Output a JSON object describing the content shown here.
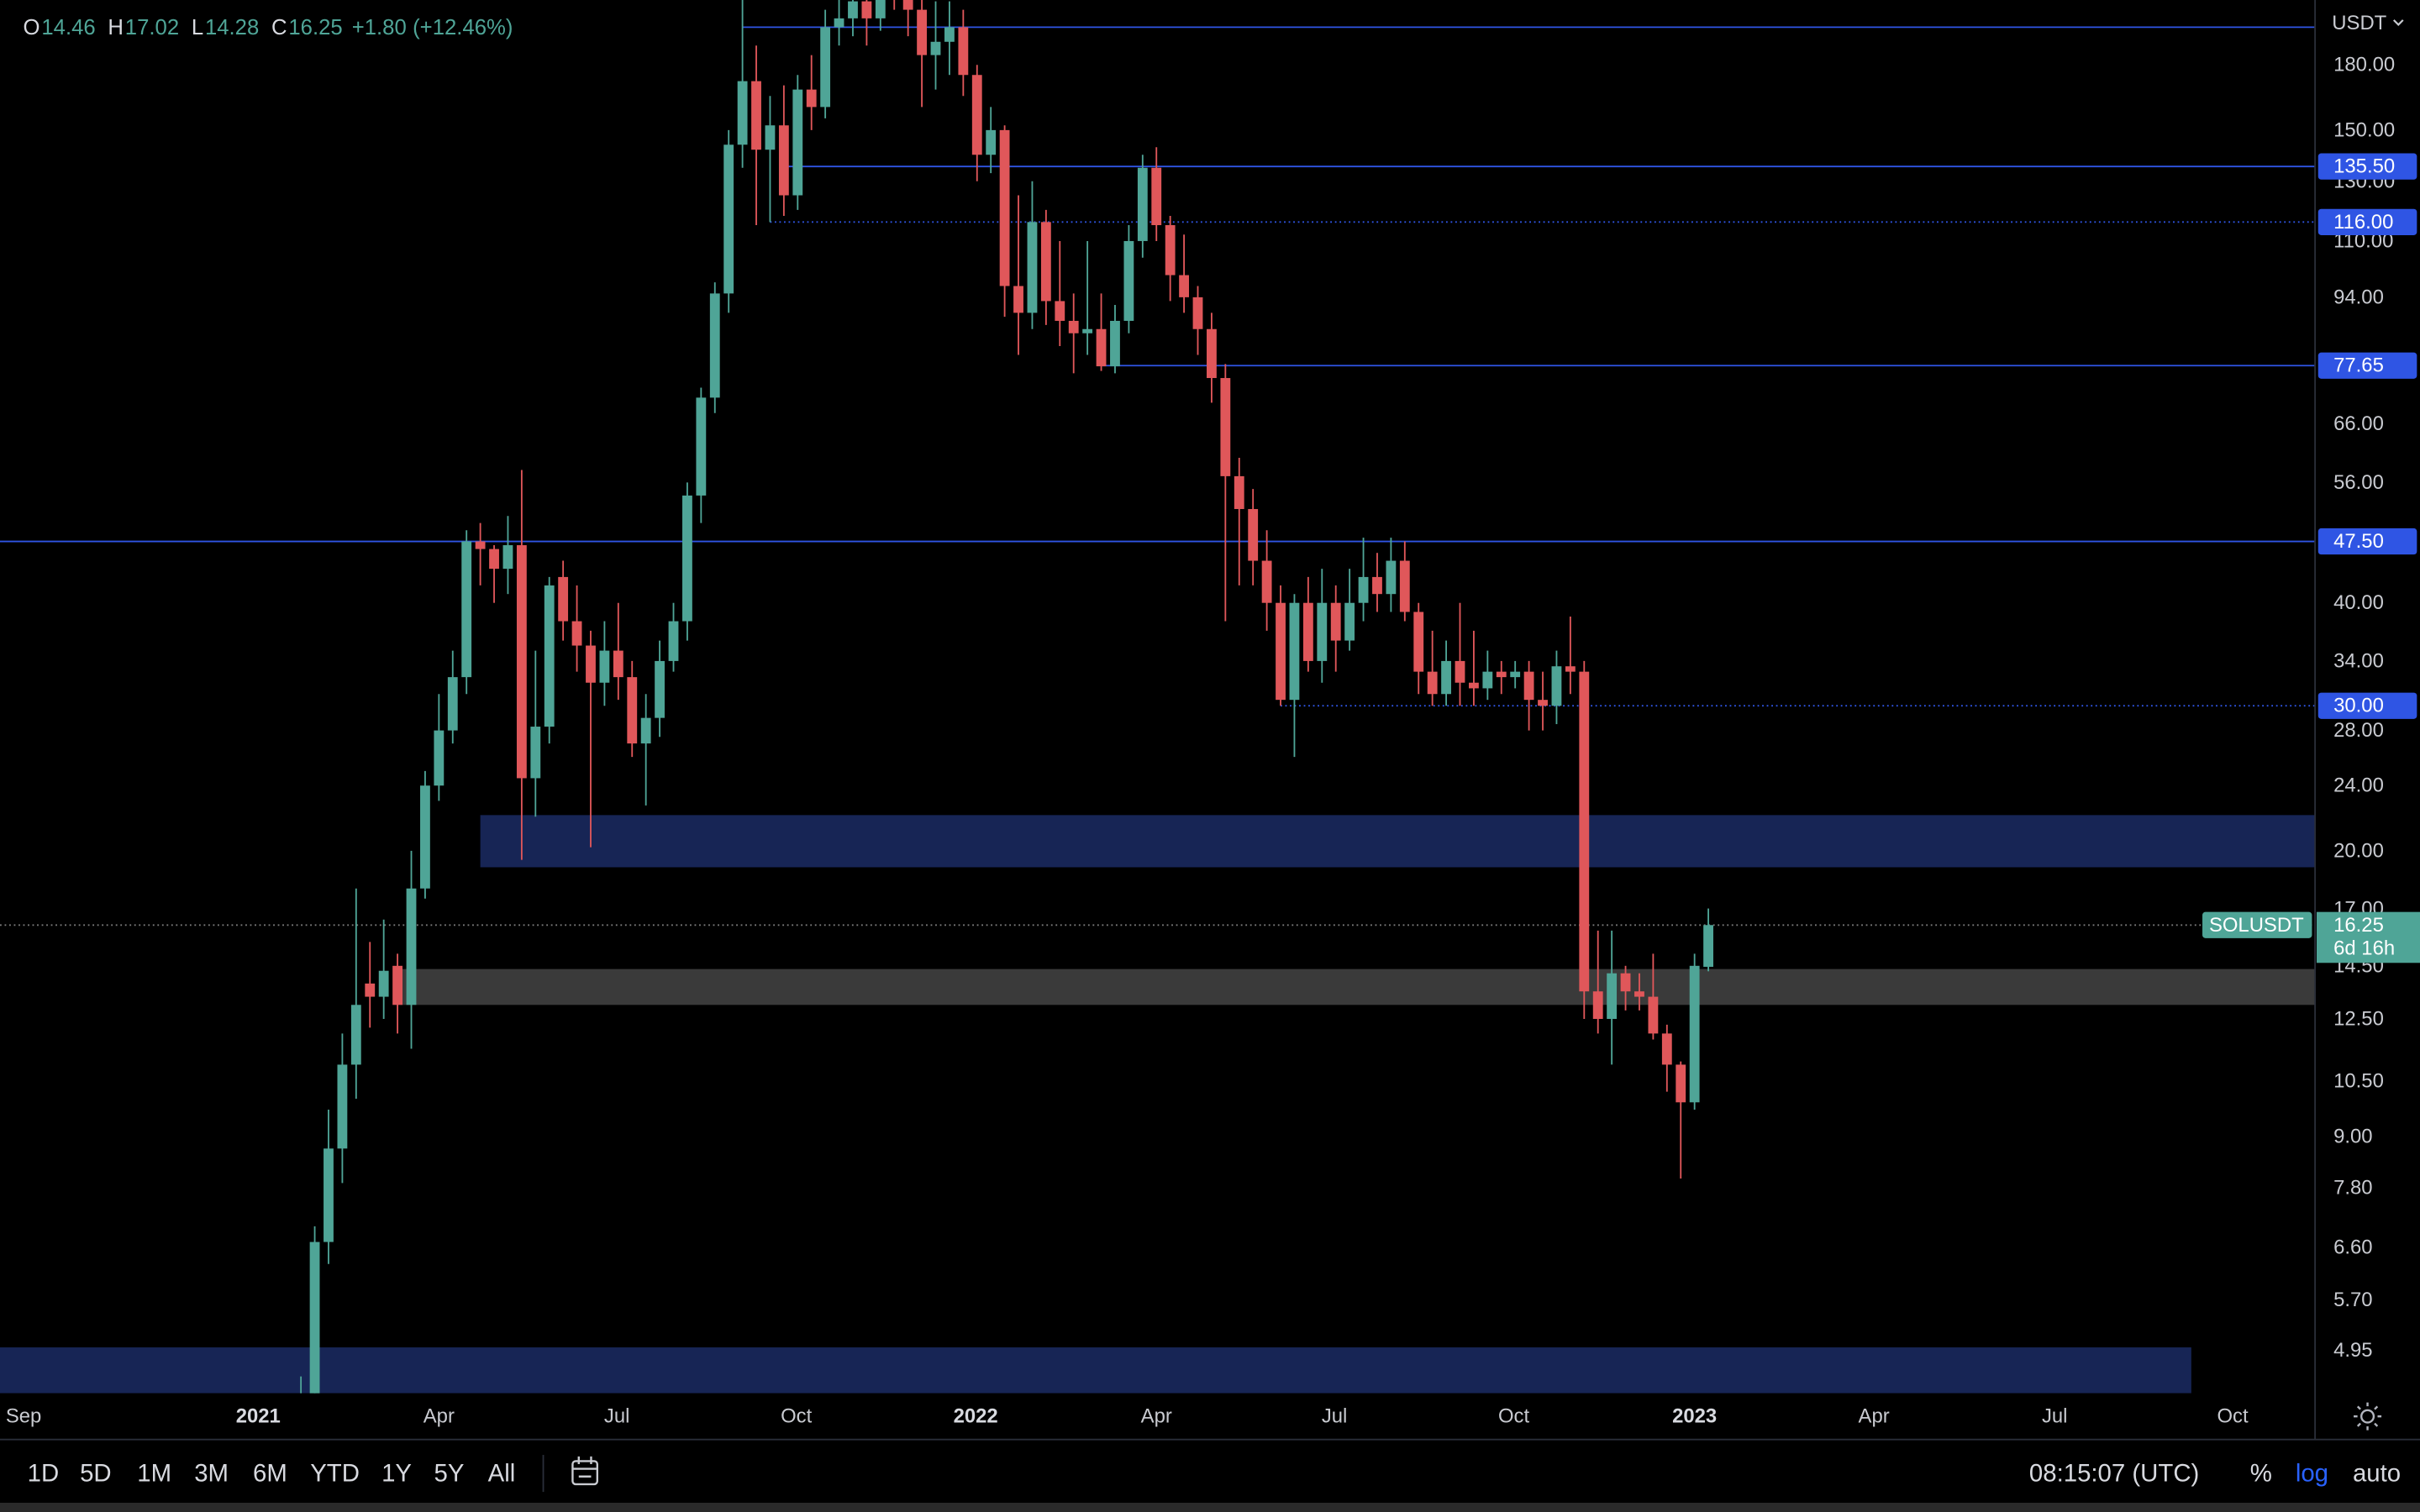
{
  "chart_data": {
    "type": "candlestick",
    "symbol": "SOLUSDT",
    "currency": "USDT",
    "countdown": "6d 16h",
    "ohlc_labels": [
      "O",
      "H",
      "L",
      "C"
    ],
    "change": "+1.80",
    "change_pct": "(+12.46%)",
    "log_scale": true,
    "up_color": "#4fa597",
    "down_color": "#e0575a",
    "level_color": "#2f55e4",
    "open": [
      3.9,
      4.2,
      6.7,
      8.7,
      11,
      13.8,
      13.3,
      14.5,
      13,
      18,
      24,
      28,
      32.5,
      47.5,
      46.5,
      44,
      47,
      24.5,
      28.3,
      43,
      38,
      35.5,
      32,
      35,
      32.5,
      27,
      29,
      34,
      38,
      54,
      71,
      95,
      144,
      172,
      142,
      152,
      125,
      168,
      160,
      200,
      205,
      215,
      205,
      245,
      230,
      210,
      185,
      192,
      200,
      175,
      140,
      150,
      97,
      90,
      116,
      93,
      88,
      85,
      86,
      77.5,
      88,
      110,
      135,
      115,
      100,
      94,
      86,
      75,
      57,
      52,
      45,
      40,
      30.5,
      40,
      34,
      40,
      36,
      40,
      43,
      41,
      45,
      39,
      33,
      31,
      34,
      32,
      31.5,
      33,
      32.5,
      33,
      30.5,
      30,
      33.5,
      33,
      13.5,
      12.5,
      14.2,
      13.5,
      13.3,
      12,
      11,
      9.9,
      14.46
    ],
    "high": [
      4.6,
      7,
      9.7,
      12,
      18,
      15.5,
      16.5,
      15,
      20,
      25,
      31,
      35,
      49,
      50,
      47,
      51,
      58,
      35,
      43,
      45,
      42,
      37,
      38,
      40,
      34,
      31,
      36,
      40,
      56,
      73,
      98,
      150,
      216,
      190,
      165,
      170,
      175,
      185,
      210,
      220,
      240,
      245,
      259,
      255,
      240,
      225,
      215,
      215,
      210,
      180,
      160,
      152,
      125,
      130,
      120,
      110,
      95,
      110,
      95,
      92,
      115,
      140,
      143,
      118,
      112,
      97,
      90,
      78,
      60,
      55,
      49,
      42,
      41,
      43,
      44,
      42,
      44,
      48,
      46,
      48,
      47.5,
      40,
      37,
      36,
      40,
      37,
      35,
      34,
      34,
      34,
      33,
      35,
      38.5,
      34,
      16,
      16,
      14.5,
      14.2,
      15,
      12.3,
      11.1,
      15,
      17.02
    ],
    "low": [
      3.5,
      4,
      6.3,
      7.9,
      10,
      12.2,
      12.5,
      12,
      11.5,
      17.5,
      23,
      27,
      31,
      42,
      40,
      41,
      19.5,
      22,
      27,
      36,
      33,
      20.2,
      30,
      30.5,
      26,
      22.7,
      27.5,
      33,
      36,
      50,
      68,
      90,
      135,
      115,
      116,
      118,
      120,
      150,
      155,
      190,
      195,
      190,
      198,
      210,
      195,
      160,
      168,
      175,
      165,
      130,
      133,
      89,
      80,
      86,
      87,
      82,
      76,
      80,
      76.5,
      76,
      85,
      105,
      110,
      93,
      90,
      80,
      70,
      38,
      42,
      42,
      37,
      30,
      26,
      33,
      32,
      33,
      35,
      38,
      39,
      39,
      38,
      31,
      30,
      30,
      30,
      30,
      30.5,
      31,
      31.5,
      28,
      28,
      28.5,
      31,
      12.5,
      12,
      11,
      12.8,
      12.8,
      11.8,
      10.2,
      8,
      9.7,
      14.28
    ],
    "close": [
      4.2,
      6.7,
      8.7,
      11,
      13,
      13.3,
      14.3,
      13,
      18,
      24,
      28,
      32.5,
      47.5,
      46.5,
      44,
      47,
      24.5,
      28.3,
      42,
      38,
      35.5,
      32,
      35,
      32.5,
      27,
      29,
      34,
      38,
      54,
      71,
      95,
      144,
      172,
      142,
      152,
      125,
      168,
      160,
      200,
      205,
      215,
      205,
      245,
      230,
      210,
      185,
      192,
      200,
      175,
      140,
      150,
      97,
      90,
      116,
      93,
      88,
      85,
      86,
      77.5,
      88,
      110,
      135,
      115,
      100,
      94,
      86,
      75,
      57,
      52,
      45,
      40,
      30.5,
      40,
      34,
      40,
      36,
      40,
      43,
      41,
      45,
      39,
      33,
      31,
      34,
      32,
      31.5,
      33,
      32.5,
      33,
      30.5,
      30,
      33.5,
      33,
      13.5,
      12.5,
      14.2,
      13.5,
      13.3,
      12,
      11,
      9.9,
      14.5,
      16.25
    ],
    "xlim": [
      -21.81,
      145.97
    ],
    "ylim": [
      4.39,
      215.8
    ],
    "xticks": [
      {
        "value": -20.1,
        "label": "Sep"
      },
      {
        "value": -3.1,
        "label": "2021"
      },
      {
        "value": 10.0,
        "label": "Apr"
      },
      {
        "value": 22.9,
        "label": "Jul"
      },
      {
        "value": 35.9,
        "label": "Oct"
      },
      {
        "value": 48.9,
        "label": "2022"
      },
      {
        "value": 62.0,
        "label": "Apr"
      },
      {
        "value": 74.9,
        "label": "Jul"
      },
      {
        "value": 87.9,
        "label": "Oct"
      },
      {
        "value": 101.0,
        "label": "2023"
      },
      {
        "value": 114.0,
        "label": "Apr"
      },
      {
        "value": 127.1,
        "label": "Jul"
      },
      {
        "value": 140.0,
        "label": "Oct"
      }
    ],
    "yticks": [
      {
        "value": 180,
        "label": "180.00"
      },
      {
        "value": 150,
        "label": "150.00"
      },
      {
        "value": 130,
        "label": "130.00"
      },
      {
        "value": 110,
        "label": "110.00"
      },
      {
        "value": 94,
        "label": "94.00"
      },
      {
        "value": 66,
        "label": "66.00"
      },
      {
        "value": 56,
        "label": "56.00"
      },
      {
        "value": 40,
        "label": "40.00"
      },
      {
        "value": 34,
        "label": "34.00"
      },
      {
        "value": 28,
        "label": "28.00"
      },
      {
        "value": 24,
        "label": "24.00"
      },
      {
        "value": 20,
        "label": "20.00"
      },
      {
        "value": 17,
        "label": "17.00"
      },
      {
        "value": 14.5,
        "label": "14.50"
      },
      {
        "value": 12.5,
        "label": "12.50"
      },
      {
        "value": 10.5,
        "label": "10.50"
      },
      {
        "value": 9,
        "label": "9.00"
      },
      {
        "value": 7.8,
        "label": "7.80"
      },
      {
        "value": 6.6,
        "label": "6.60"
      },
      {
        "value": 5.7,
        "label": "5.70"
      },
      {
        "value": 4.95,
        "label": "4.95"
      }
    ],
    "levels": [
      {
        "value": 200,
        "from": 32,
        "style": "solid"
      },
      {
        "value": 135.5,
        "label": "135.50",
        "from": 35,
        "style": "solid"
      },
      {
        "value": 116,
        "label": "116.00",
        "from": 34,
        "style": "dotted"
      },
      {
        "value": 77.65,
        "label": "77.65",
        "from": 58,
        "style": "solid"
      },
      {
        "value": 47.5,
        "label": "47.50",
        "style": "solid"
      },
      {
        "value": 30,
        "label": "30.00",
        "from": 71,
        "style": "dotted"
      }
    ],
    "zones": [
      {
        "top": 22.1,
        "bottom": 19.1,
        "from": 13,
        "color": "#172555"
      },
      {
        "top": 14.37,
        "bottom": 13.0,
        "from": 6.8,
        "color": "#3a3a3a"
      },
      {
        "top": 4.99,
        "bottom": 4.39,
        "to": 137,
        "color": "#172555"
      }
    ]
  },
  "toolbar": {
    "ranges": [
      "1D",
      "5D",
      "1M",
      "3M",
      "6M",
      "YTD",
      "1Y",
      "5Y",
      "All"
    ],
    "clock": "08:15:07 (UTC)",
    "percent": "%",
    "log": "log",
    "auto": "auto"
  }
}
